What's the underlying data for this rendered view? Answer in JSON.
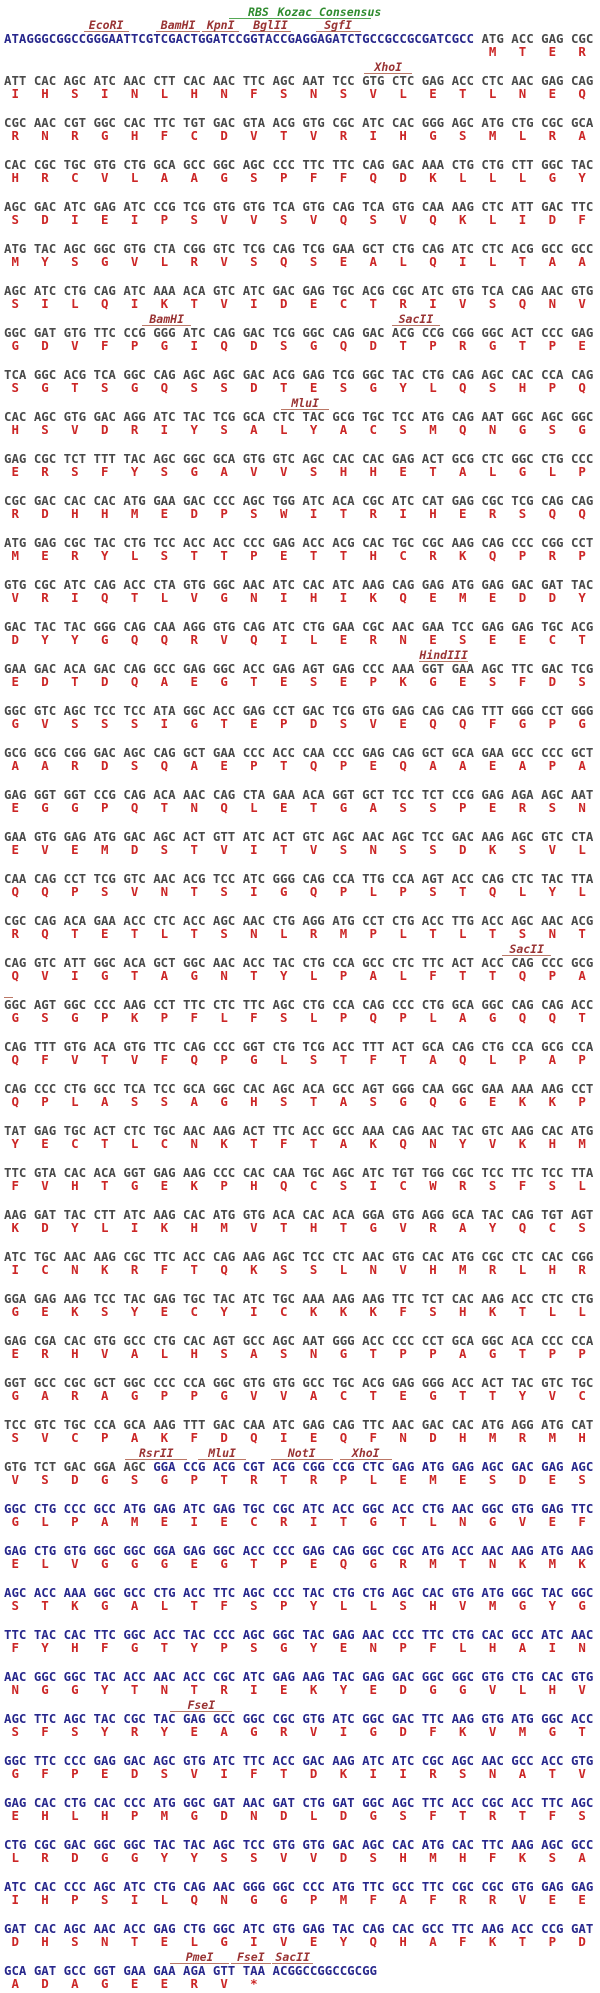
{
  "app": {
    "name": "vector-sequence-map"
  },
  "colors": {
    "vector_dna": "#28288c",
    "orf_dna": "#4a4a4a",
    "tag_dna": "#28288c",
    "amino_acid": "#cc2626",
    "enzyme_label": "#993333",
    "enzyme_underline": "#bb7766",
    "feature_label": "#2e8b2e",
    "feature_underline": "#55a855",
    "background": "#ffffff"
  },
  "blocks": [
    {
      "ann_green": [
        {
          "label": "RBS",
          "start": 32.5,
          "len": 8.5
        },
        {
          "label": "Kozac Consensus",
          "start": 41,
          "len": 12
        }
      ],
      "ann": [
        {
          "label": "EcoRI",
          "start": 11.5,
          "len": 6.5
        },
        {
          "label": "BamHI",
          "start": 22,
          "len": 6.3
        },
        {
          "label": "KpnI",
          "start": 28.6,
          "len": 5.4
        },
        {
          "label": "BglII",
          "start": 35.5,
          "len": 6
        },
        {
          "label": "SgfI",
          "start": 45,
          "len": 6.5
        }
      ],
      "prefix": "ATAGGGCGGCCGGGAATTCGTCGACTGGATCCGGTACCGAGGAGATCTGCCGCCGCGATCGCC",
      "codons": "ATG ACC GAG CGC",
      "aa": "M T E R"
    },
    {
      "ann": [
        {
          "label": "XhoI",
          "start": 52,
          "len": 7
        }
      ],
      "codons": "ATT CAC AGC ATC AAC CTT CAC AAC TTC AGC AAT TCC GTG CTC GAG ACC CTC AAC GAG CAG",
      "aa": "I H S I N L H N F S N S V L E T L N E Q"
    },
    {
      "codons": "CGC AAC CGT GGC CAC TTC TGT GAC GTA ACG GTG CGC ATC CAC GGG AGC ATG CTG CGC GCA",
      "aa": "R N R G H F C D V T V R I H G S M L R A"
    },
    {
      "codons": "CAC CGC TGC GTG CTG GCA GCC GGC AGC CCC TTC TTC CAG GAC AAA CTG CTG CTT GGC TAC",
      "aa": "H R C V L A A G S P F F Q D K L L L G Y"
    },
    {
      "codons": "AGC GAC ATC GAG ATC CCG TCG GTG GTG TCA GTG CAG TCA GTG CAA AAG CTC ATT GAC TTC",
      "aa": "S D I E I P S V V S V Q S V Q K L I D F"
    },
    {
      "codons": "ATG TAC AGC GGC GTG CTA CGG GTC TCG CAG TCG GAA GCT CTG CAG ATC CTC ACG GCC GCC",
      "aa": "M Y S G V L R V S Q S E A L Q I L T A A"
    },
    {
      "codons": "AGC ATC CTG CAG ATC AAA ACA GTC ATC GAC GAG TGC ACG CGC ATC GTG TCA CAG AAC GTG",
      "aa": "S I L Q I K T V I D E C T R I V S Q N V"
    },
    {
      "ann": [
        {
          "label": "BamHI",
          "start": 20,
          "len": 7
        },
        {
          "label": "SacII",
          "start": 56,
          "len": 7
        }
      ],
      "codons": "GGC GAT GTG TTC CCG GGG ATC CAG GAC TCG GGC CAG GAC ACG CCG CGG GGC ACT CCC GAG",
      "aa": "G D V F P G I Q D S G Q D T P R G T P E"
    },
    {
      "codons": "TCA GGC ACG TCA GGC CAG AGC AGC GAC ACG GAG TCG GGC TAC CTG CAG AGC CAC CCA CAG",
      "aa": "S G T S G Q S S D T E S G Y L Q S H P Q"
    },
    {
      "ann": [
        {
          "label": "MluI",
          "start": 40,
          "len": 7
        }
      ],
      "codons": "CAC AGC GTG GAC AGG ATC TAC TCG GCA CTC TAC GCG TGC TCC ATG CAG AAT GGC AGC GGC",
      "aa": "H S V D R I Y S A L Y A C S M Q N G S G"
    },
    {
      "codons": "GAG CGC TCT TTT TAC AGC GGC GCA GTG GTC AGC CAC CAC GAG ACT GCG CTC GGC CTG CCC",
      "aa": "E R S F Y S G A V V S H H E T A L G L P"
    },
    {
      "codons": "CGC GAC CAC CAC ATG GAA GAC CCC AGC TGG ATC ACA CGC ATC CAT GAG CGC TCG CAG CAG",
      "aa": "R D H H M E D P S W I T R I H E R S Q Q"
    },
    {
      "codons": "ATG GAG CGC TAC CTG TCC ACC ACC CCC GAG ACC ACG CAC TGC CGC AAG CAG CCC CGG CCT",
      "aa": "M E R Y L S T T P E T T H C R K Q P R P"
    },
    {
      "codons": "GTG CGC ATC CAG ACC CTA GTG GGC AAC ATC CAC ATC AAG CAG GAG ATG GAG GAC GAT TAC",
      "aa": "V R I Q T L V G N I H I K Q E M E D D Y"
    },
    {
      "codons": "GAC TAC TAC GGG CAG CAA AGG GTG CAG ATC CTG GAA CGC AAC GAA TCC GAG GAG TGC ACG",
      "aa": "D Y Y G Q Q R V Q I L E R N E S E E C T"
    },
    {
      "ann": [
        {
          "label": "HindIII",
          "start": 60,
          "len": 7
        }
      ],
      "codons": "GAA GAC ACA GAC CAG GCC GAG GGC ACC GAG AGT GAG CCC AAA GGT GAA AGC TTC GAC TCG",
      "aa": "E D T D Q A E G T E S E P K G E S F D S"
    },
    {
      "codons": "GGC GTC AGC TCC TCC ATA GGC ACC GAG CCT GAC TCG GTG GAG CAG CAG TTT GGG CCT GGG",
      "aa": "G V S S S I G T E P D S V E Q Q F G P G"
    },
    {
      "codons": "GCG GCG CGG GAC AGC CAG GCT GAA CCC ACC CAA CCC GAG CAG GCT GCA GAA GCC CCC GCT",
      "aa": "A A R D S Q A E P T Q P E Q A A E A P A"
    },
    {
      "codons": "GAG GGT GGT CCG CAG ACA AAC CAG CTA GAA ACA GGT GCT TCC TCT CCG GAG AGA AGC AAT",
      "aa": "E G G P Q T N Q L E T G A S S P E R S N"
    },
    {
      "codons": "GAA GTG GAG ATG GAC AGC ACT GTT ATC ACT GTC AGC AAC AGC TCC GAC AAG AGC GTC CTA",
      "aa": "E V E M D S T V I T V S N S S D K S V L"
    },
    {
      "codons": "CAA CAG CCT TCG GTC AAC ACG TCC ATC GGG CAG CCA TTG CCA AGT ACC CAG CTC TAC TTA",
      "aa": "Q Q P S V N T S I G Q P L P S T Q L Y L"
    },
    {
      "codons": "CGC CAG ACA GAA ACC CTC ACC AGC AAC CTG AGG ATG CCT CTG ACC TTG ACC AGC AAC ACG",
      "aa": "R Q T E T L T S N L R M P L T L T S N T"
    },
    {
      "ann": [
        {
          "label": "SacII",
          "start": 72,
          "len": 7
        }
      ],
      "codons": "CAG GTC ATT GGC ACA GCT GGC AAC ACC TAC CTG CCA GCC CTC TTC ACT ACC CAG CCC GCG",
      "aa": "Q V I G T A G N T Y L P A L F T T Q P A"
    },
    {
      "ann": [
        {
          "label": "",
          "start": 0,
          "len": 1.3
        }
      ],
      "codons": "GGC AGT GGC CCC AAG CCT TTC CTC TTC AGC CTG CCA CAG CCC CTG GCA GGC CAG CAG ACC",
      "aa": "G S G P K P F L F S L P Q P L A G Q Q T"
    },
    {
      "codons": "CAG TTT GTG ACA GTG TTC CAG CCC GGT CTG TCG ACC TTT ACT GCA CAG CTG CCA GCG CCA",
      "aa": "Q F V T V F Q P G L S T F T A Q L P A P"
    },
    {
      "codons": "CAG CCC CTG GCC TCA TCC GCA GGC CAC AGC ACA GCC AGT GGG CAA GGC GAA AAA AAG CCT",
      "aa": "Q P L A S S A G H S T A S G Q G E K K P"
    },
    {
      "codons": "TAT GAG TGC ACT CTC TGC AAC AAG ACT TTC ACC GCC AAA CAG AAC TAC GTC AAG CAC ATG",
      "aa": "Y E C T L C N K T F T A K Q N Y V K H M"
    },
    {
      "codons": "TTC GTA CAC ACA GGT GAG AAG CCC CAC CAA TGC AGC ATC TGT TGG CGC TCC TTC TCC TTA",
      "aa": "F V H T G E K P H Q C S I C W R S F S L"
    },
    {
      "codons": "AAG GAT TAC CTT ATC AAG CAC ATG GTG ACA CAC ACA GGA GTG AGG GCA TAC CAG TGT AGT",
      "aa": "K D Y L I K H M V T H T G V R A Y Q C S"
    },
    {
      "codons": "ATC TGC AAC AAG CGC TTC ACC CAG AAG AGC TCC CTC AAC GTG CAC ATG CGC CTC CAC CGG",
      "aa": "I C N K R F T Q K S S L N V H M R L H R"
    },
    {
      "codons": "GGA GAG AAG TCC TAC GAG TGC TAC ATC TGC AAA AAG AAG TTC TCT CAC AAG ACC CTC CTG",
      "aa": "G E K S Y E C Y I C K K K F S H K T L L"
    },
    {
      "codons": "GAG CGA CAC GTG GCC CTG CAC AGT GCC AGC AAT GGG ACC CCC CCT GCA GGC ACA CCC CCA",
      "aa": "E R H V A L H S A S N G T P P A G T P P"
    },
    {
      "codons": "GGT GCC CGC GCT GGC CCC CCA GGC GTG GTG GCC TGC ACG GAG GGG ACC ACT TAC GTC TGC",
      "aa": "G A R A G P P G V V A C T E G T T Y V C"
    },
    {
      "codons": "TCC GTC TGC CCA GCA AAG TTT GAC CAA ATC GAG CAG TTC AAC GAC CAC ATG AGG ATG CAT",
      "aa": "S V C P A K F D Q I E Q F N D H M R M H"
    },
    {
      "ann": [
        {
          "label": "RsrII",
          "start": 17.5,
          "len": 9
        },
        {
          "label": "MluI",
          "start": 28,
          "len": 7
        },
        {
          "label": "NotI",
          "start": 38.5,
          "len": 9
        },
        {
          "label": "XhoI",
          "start": 48.5,
          "len": 7.5
        }
      ],
      "codons": "GTG TCT GAC GGA AGC",
      "codons2": "GGA CCG ACG CGT ACG CGG CCG CTC GAG ATG GAG AGC GAC GAG AGC",
      "aa": "V S D G S G P T R T R P L E M E S D E S"
    },
    {
      "tag": true,
      "codons": "GGC CTG CCC GCC ATG GAG ATC GAG TGC CGC ATC ACC GGC ACC CTG AAC GGC GTG GAG TTC",
      "aa": "G L P A M E I E C R I T G T L N G V E F"
    },
    {
      "tag": true,
      "codons": "GAG CTG GTG GGC GGC GGA GAG GGC ACC CCC GAG CAG GGC CGC ATG ACC AAC AAG ATG AAG",
      "aa": "E L V G G G E G T P E Q G R M T N K M K"
    },
    {
      "tag": true,
      "codons": "AGC ACC AAA GGC GCC CTG ACC TTC AGC CCC TAC CTG CTG AGC CAC GTG ATG GGC TAC GGC",
      "aa": "S T K G A L T F S P Y L L S H V M G Y G"
    },
    {
      "tag": true,
      "codons": "TTC TAC CAC TTC GGC ACC TAC CCC AGC GGC TAC GAG AAC CCC TTC CTG CAC GCC ATC AAC",
      "aa": "F Y H F G T Y P S G Y E N P F L H A I N"
    },
    {
      "tag": true,
      "codons": "AAC GGC GGC TAC ACC AAC ACC CGC ATC GAG AAG TAC GAG GAC GGC GGC GTG CTG CAC GTG",
      "aa": "N G G Y T N T R I E K Y E D G G V L H V"
    },
    {
      "tag": true,
      "ann": [
        {
          "label": "FseI",
          "start": 24,
          "len": 9
        }
      ],
      "codons": "AGC TTC AGC TAC CGC TAC GAG GCC GGC CGC GTG ATC GGC GAC TTC AAG GTG ATG GGC ACC",
      "aa": "S F S Y R Y E A G R V I G D F K V M G T"
    },
    {
      "tag": true,
      "codons": "GGC TTC CCC GAG GAC AGC GTG ATC TTC ACC GAC AAG ATC ATC CGC AGC AAC GCC ACC GTG",
      "aa": "G F P E D S V I F T D K I I R S N A T V"
    },
    {
      "tag": true,
      "codons": "GAG CAC CTG CAC CCC ATG GGC GAT AAC GAT CTG GAT GGC AGC TTC ACC CGC ACC TTC AGC",
      "aa": "E H L H P M G D N D L D G S F T R T F S"
    },
    {
      "tag": true,
      "codons": "CTG CGC GAC GGC GGC TAC TAC AGC TCC GTG GTG GAC AGC CAC ATG CAC TTC AAG AGC GCC",
      "aa": "L R D G G Y Y S S V V D S H M H F K S A"
    },
    {
      "tag": true,
      "codons": "ATC CAC CCC AGC ATC CTG CAG AAC GGG GGC CCC ATG TTC GCC TTC CGC CGC GTG GAG GAG",
      "aa": "I H P S I L Q N G G P M F A F R R V E E"
    },
    {
      "tag": true,
      "codons": "GAT CAC AGC AAC ACC GAG CTG GGC ATC GTG GAG TAC CAG CAC GCC TTC AAG ACC CCG GAT",
      "aa": "D H S N T E L G I V E Y Q H A F K T P D"
    },
    {
      "tag": true,
      "ann": [
        {
          "label": "PmeI",
          "start": 24,
          "len": 8.5
        },
        {
          "label": "FseI",
          "start": 32.8,
          "len": 5.7
        },
        {
          "label": "SacII",
          "start": 38.7,
          "len": 6
        }
      ],
      "codons": "GCA GAT GCC GGT GAA GAA AGA GTT TAA",
      "suffix": "ACGGCCGGCCGCGG",
      "aa": "A D A G E E R V *"
    }
  ]
}
